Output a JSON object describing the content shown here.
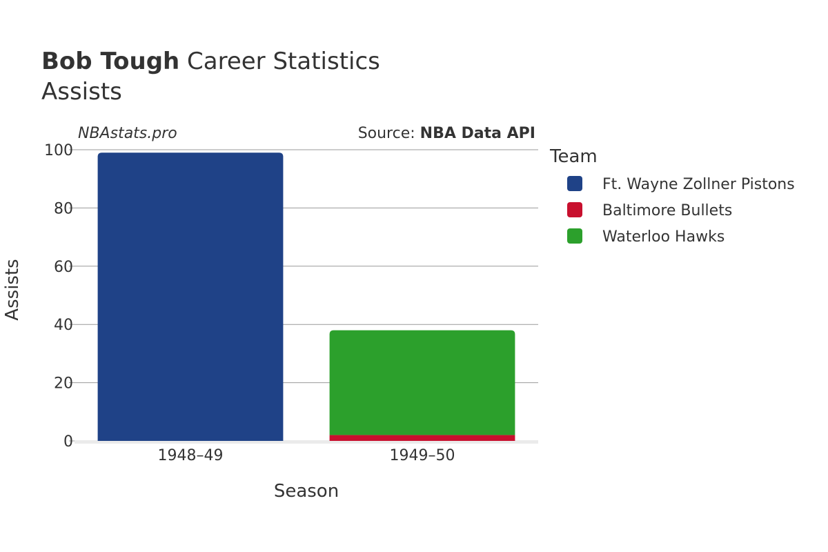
{
  "title": {
    "bold": "Bob Tough",
    "rest": " Career Statistics",
    "subtitle": "Assists"
  },
  "watermark": "NBAstats.pro",
  "source": {
    "prefix": "Source: ",
    "name": "NBA Data API"
  },
  "legend": {
    "title": "Team"
  },
  "chart_data": {
    "type": "bar",
    "stacked": true,
    "categories": [
      "1948–49",
      "1949–50"
    ],
    "series": [
      {
        "name": "Ft. Wayne Zollner Pistons",
        "values": [
          99,
          0
        ],
        "color": "#1f4287"
      },
      {
        "name": "Baltimore Bullets",
        "values": [
          0,
          2
        ],
        "color": "#c8102e"
      },
      {
        "name": "Waterloo Hawks",
        "values": [
          0,
          36
        ],
        "color": "#2ca02c"
      }
    ],
    "xlabel": "Season",
    "ylabel": "Assists",
    "ylim": [
      0,
      100
    ],
    "yticks": [
      0,
      20,
      40,
      60,
      80,
      100
    ],
    "grid": true,
    "legend_position": "right"
  }
}
